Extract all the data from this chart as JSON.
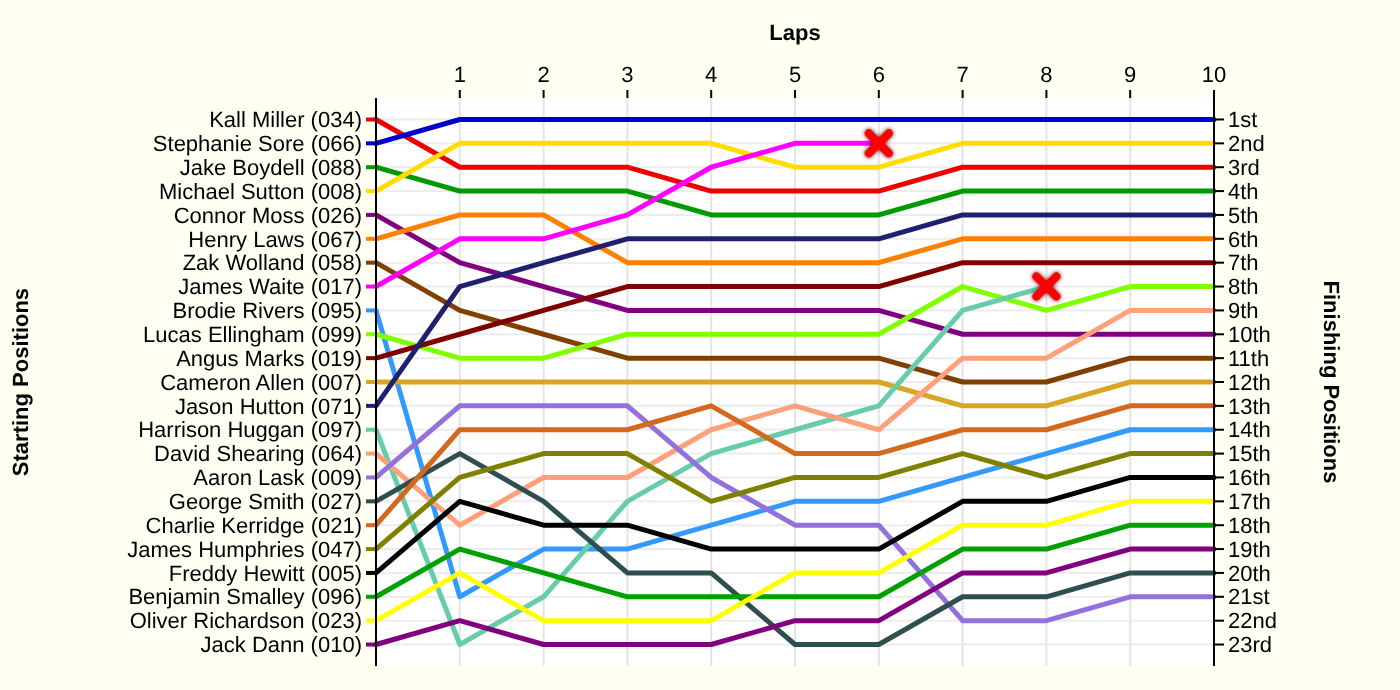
{
  "chart_data": {
    "type": "line",
    "xlabel": "Laps",
    "ylabel": "Finishing Positions",
    "annotations": [
      "Starting Positions"
    ],
    "legend": "left",
    "x": [
      0,
      1,
      2,
      3,
      4,
      5,
      6,
      7,
      8,
      9,
      10
    ],
    "xlim": [
      0,
      10
    ],
    "xticks": [
      1,
      2,
      3,
      4,
      5,
      6,
      7,
      8,
      9,
      10
    ],
    "ylim": [
      23.9,
      0.1
    ],
    "grid": true,
    "marker": "none",
    "line_style": "solid",
    "yticks": [
      {
        "value": 1,
        "label": "1st"
      },
      {
        "value": 2,
        "label": "2nd"
      },
      {
        "value": 3,
        "label": "3rd"
      },
      {
        "value": 4,
        "label": "4th"
      },
      {
        "value": 5,
        "label": "5th"
      },
      {
        "value": 6,
        "label": "6th"
      },
      {
        "value": 7,
        "label": "7th"
      },
      {
        "value": 8,
        "label": "8th"
      },
      {
        "value": 9,
        "label": "9th"
      },
      {
        "value": 10,
        "label": "10th"
      },
      {
        "value": 11,
        "label": "11th"
      },
      {
        "value": 12,
        "label": "12th"
      },
      {
        "value": 13,
        "label": "13th"
      },
      {
        "value": 14,
        "label": "14th"
      },
      {
        "value": 15,
        "label": "15th"
      },
      {
        "value": 16,
        "label": "16th"
      },
      {
        "value": 17,
        "label": "17th"
      },
      {
        "value": 18,
        "label": "18th"
      },
      {
        "value": 19,
        "label": "19th"
      },
      {
        "value": 20,
        "label": "20th"
      },
      {
        "value": 21,
        "label": "21st"
      },
      {
        "value": 22,
        "label": "22nd"
      },
      {
        "value": 23,
        "label": "23rd"
      }
    ],
    "series": [
      {
        "name": "Kall Miller (034)",
        "color": "#ee0000",
        "values": [
          1,
          3,
          3,
          3,
          4,
          4,
          4,
          3,
          3,
          3,
          3
        ]
      },
      {
        "name": "Stephanie Sore (066)",
        "color": "#0000cc",
        "values": [
          2,
          1,
          1,
          1,
          1,
          1,
          1,
          1,
          1,
          1,
          1
        ]
      },
      {
        "name": "Jake Boydell (088)",
        "color": "#009900",
        "values": [
          3,
          4,
          4,
          4,
          5,
          5,
          5,
          4,
          4,
          4,
          4
        ]
      },
      {
        "name": "Michael Sutton (008)",
        "color": "#ffdd00",
        "values": [
          4,
          2,
          2,
          2,
          2,
          3,
          3,
          2,
          2,
          2,
          2
        ]
      },
      {
        "name": "Connor Moss (026)",
        "color": "#800080",
        "values": [
          5,
          7,
          8,
          9,
          9,
          9,
          9,
          10,
          10,
          10,
          10
        ]
      },
      {
        "name": "Henry Laws (067)",
        "color": "#ff8000",
        "values": [
          6,
          5,
          5,
          7,
          7,
          7,
          7,
          6,
          6,
          6,
          6
        ]
      },
      {
        "name": "Zak Wolland (058)",
        "color": "#804000",
        "values": [
          7,
          9,
          10,
          11,
          11,
          11,
          11,
          12,
          12,
          11,
          11
        ]
      },
      {
        "name": "James Waite (017)",
        "color": "#ff00ff",
        "values": [
          8,
          6,
          6,
          5,
          3,
          2,
          2,
          null,
          null,
          null,
          null
        ]
      },
      {
        "name": "Brodie Rivers (095)",
        "color": "#3399ff",
        "values": [
          9,
          21,
          19,
          19,
          18,
          17,
          17,
          16,
          15,
          14,
          14
        ]
      },
      {
        "name": "Lucas Ellingham (099)",
        "color": "#80ff00",
        "values": [
          10,
          11,
          11,
          10,
          10,
          10,
          10,
          8,
          9,
          8,
          8
        ]
      },
      {
        "name": "Angus Marks (019)",
        "color": "#800000",
        "values": [
          11,
          10,
          9,
          8,
          8,
          8,
          8,
          7,
          7,
          7,
          7
        ]
      },
      {
        "name": "Cameron Allen (007)",
        "color": "#daa520",
        "values": [
          12,
          12,
          12,
          12,
          12,
          12,
          12,
          13,
          13,
          12,
          12
        ]
      },
      {
        "name": "Jason Hutton (071)",
        "color": "#202070",
        "values": [
          13,
          8,
          7,
          6,
          6,
          6,
          6,
          5,
          5,
          5,
          5
        ]
      },
      {
        "name": "Harrison Huggan (097)",
        "color": "#66ccaa",
        "values": [
          14,
          23,
          21,
          17,
          15,
          14,
          13,
          9,
          8,
          null,
          null
        ]
      },
      {
        "name": "David Shearing (064)",
        "color": "#ffa07a",
        "values": [
          15,
          18,
          16,
          16,
          14,
          13,
          14,
          11,
          11,
          9,
          9
        ]
      },
      {
        "name": "Aaron Lask (009)",
        "color": "#9370db",
        "values": [
          16,
          13,
          13,
          13,
          16,
          18,
          18,
          22,
          22,
          21,
          21
        ]
      },
      {
        "name": "George Smith (027)",
        "color": "#2f4f4f",
        "values": [
          17,
          15,
          17,
          20,
          20,
          23,
          23,
          21,
          21,
          20,
          20
        ]
      },
      {
        "name": "Charlie Kerridge (021)",
        "color": "#d2691e",
        "values": [
          18,
          14,
          14,
          14,
          13,
          15,
          15,
          14,
          14,
          13,
          13
        ]
      },
      {
        "name": "James Humphries (047)",
        "color": "#808000",
        "values": [
          19,
          16,
          15,
          15,
          17,
          16,
          16,
          15,
          16,
          15,
          15
        ]
      },
      {
        "name": "Freddy Hewitt (005)",
        "color": "#000000",
        "values": [
          20,
          17,
          18,
          18,
          19,
          19,
          19,
          17,
          17,
          16,
          16
        ]
      },
      {
        "name": "Benjamin Smalley (096)",
        "color": "#00a000",
        "values": [
          21,
          19,
          20,
          21,
          21,
          21,
          21,
          19,
          19,
          18,
          18
        ]
      },
      {
        "name": "Oliver Richardson (023)",
        "color": "#ffff00",
        "values": [
          22,
          20,
          22,
          22,
          22,
          20,
          20,
          18,
          18,
          17,
          17
        ]
      },
      {
        "name": "Jack Dann (010)",
        "color": "#800080",
        "values": [
          23,
          22,
          23,
          23,
          23,
          22,
          22,
          20,
          20,
          19,
          19
        ]
      },
      {
        "type": "scatter",
        "marker": "cross",
        "color": "#ff0000",
        "x": [
          6,
          8
        ],
        "values": [
          2,
          8
        ]
      }
    ]
  }
}
